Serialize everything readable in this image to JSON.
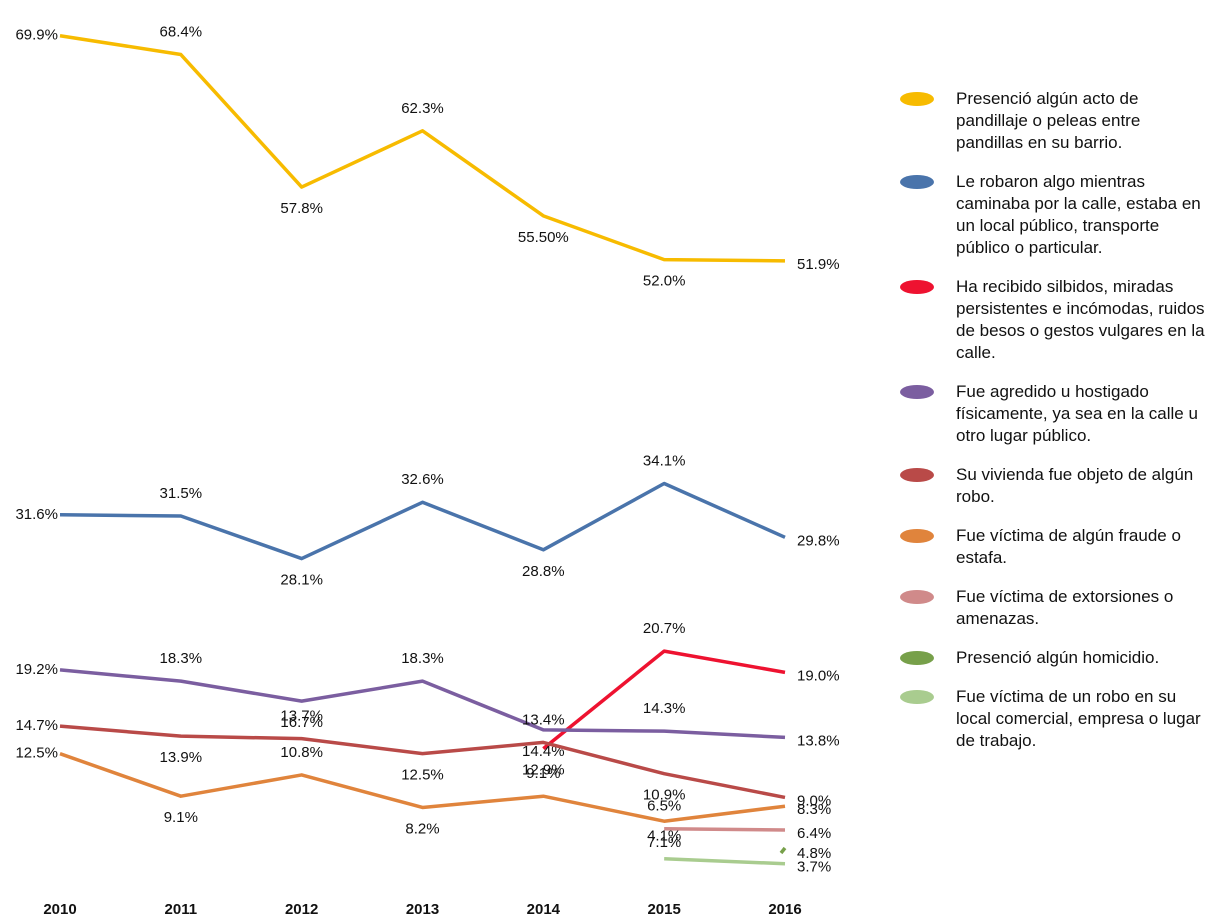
{
  "chart_data": {
    "type": "line",
    "categories": [
      "2010",
      "2011",
      "2012",
      "2013",
      "2014",
      "2015",
      "2016"
    ],
    "ylim": [
      2,
      71
    ],
    "series": [
      {
        "name": "Presenció algún acto de pandillaje o peleas entre pandillas en su barrio.",
        "color": "#f7bb00",
        "values": [
          69.9,
          68.4,
          57.8,
          62.3,
          55.5,
          52.0,
          51.9
        ],
        "value_labels": [
          "69.9%",
          "68.4%",
          "57.8%",
          "62.3%",
          "55.50%",
          "52.0%",
          "51.9%"
        ]
      },
      {
        "name": "Le robaron algo mientras caminaba por la calle, estaba en un local público, transporte público o particular.",
        "color": "#4a74ab",
        "values": [
          31.6,
          31.5,
          28.1,
          32.6,
          28.8,
          34.1,
          29.8
        ],
        "value_labels": [
          "31.6%",
          "31.5%",
          "28.1%",
          "32.6%",
          "28.8%",
          "34.1%",
          "29.8%"
        ]
      },
      {
        "name": "Ha recibido silbidos, miradas persistentes e incómodas, ruidos de besos o gestos vulgares en la calle.",
        "color": "#ee1230",
        "values": [
          null,
          null,
          null,
          null,
          12.9,
          20.7,
          19.0
        ],
        "value_labels": [
          null,
          null,
          null,
          null,
          "12.9%",
          "20.7%",
          "19.0%"
        ]
      },
      {
        "name": "Fue agredido u hostigado físicamente, ya sea en la calle u otro lugar público.",
        "color": "#7b5ea0",
        "values": [
          19.2,
          18.3,
          16.7,
          18.3,
          14.4,
          14.3,
          13.8
        ],
        "value_labels": [
          "19.2%",
          "18.3%",
          "16.7%",
          "18.3%",
          "14.4%",
          "14.3%",
          "13.8%"
        ]
      },
      {
        "name": "Su vivienda fue objeto de algún robo.",
        "color": "#b94a48",
        "values": [
          14.7,
          13.9,
          13.7,
          12.5,
          13.4,
          10.9,
          9.0
        ],
        "value_labels": [
          "14.7%",
          "13.9%",
          "13.7%",
          "12.5%",
          "13.4%",
          "10.9%",
          "9.0%"
        ]
      },
      {
        "name": "Fue víctima de algún fraude o estafa.",
        "color": "#e0843c",
        "values": [
          12.5,
          9.1,
          10.8,
          8.2,
          9.1,
          7.1,
          8.3
        ],
        "value_labels": [
          "12.5%",
          "9.1%",
          "10.8%",
          "8.2%",
          "9.1%",
          "7.1%",
          "8.3%"
        ]
      },
      {
        "name": "Fue víctima de extorsiones o amenazas.",
        "color": "#d08a8a",
        "values": [
          null,
          null,
          null,
          null,
          null,
          6.5,
          6.4
        ],
        "value_labels": [
          null,
          null,
          null,
          null,
          null,
          "6.5%",
          "6.4%"
        ]
      },
      {
        "name": "Presenció algún homicidio.",
        "color": "#77a04a",
        "values": [
          null,
          null,
          null,
          null,
          null,
          null,
          4.8
        ],
        "value_labels": [
          null,
          null,
          null,
          null,
          null,
          null,
          "4.8%"
        ]
      },
      {
        "name": "Fue víctima de un robo en su local comercial, empresa o lugar de trabajo.",
        "color": "#a9cc8f",
        "values": [
          null,
          null,
          null,
          null,
          null,
          4.1,
          3.7
        ],
        "value_labels": [
          null,
          null,
          null,
          null,
          null,
          "4.1%",
          "3.7%"
        ]
      }
    ]
  }
}
